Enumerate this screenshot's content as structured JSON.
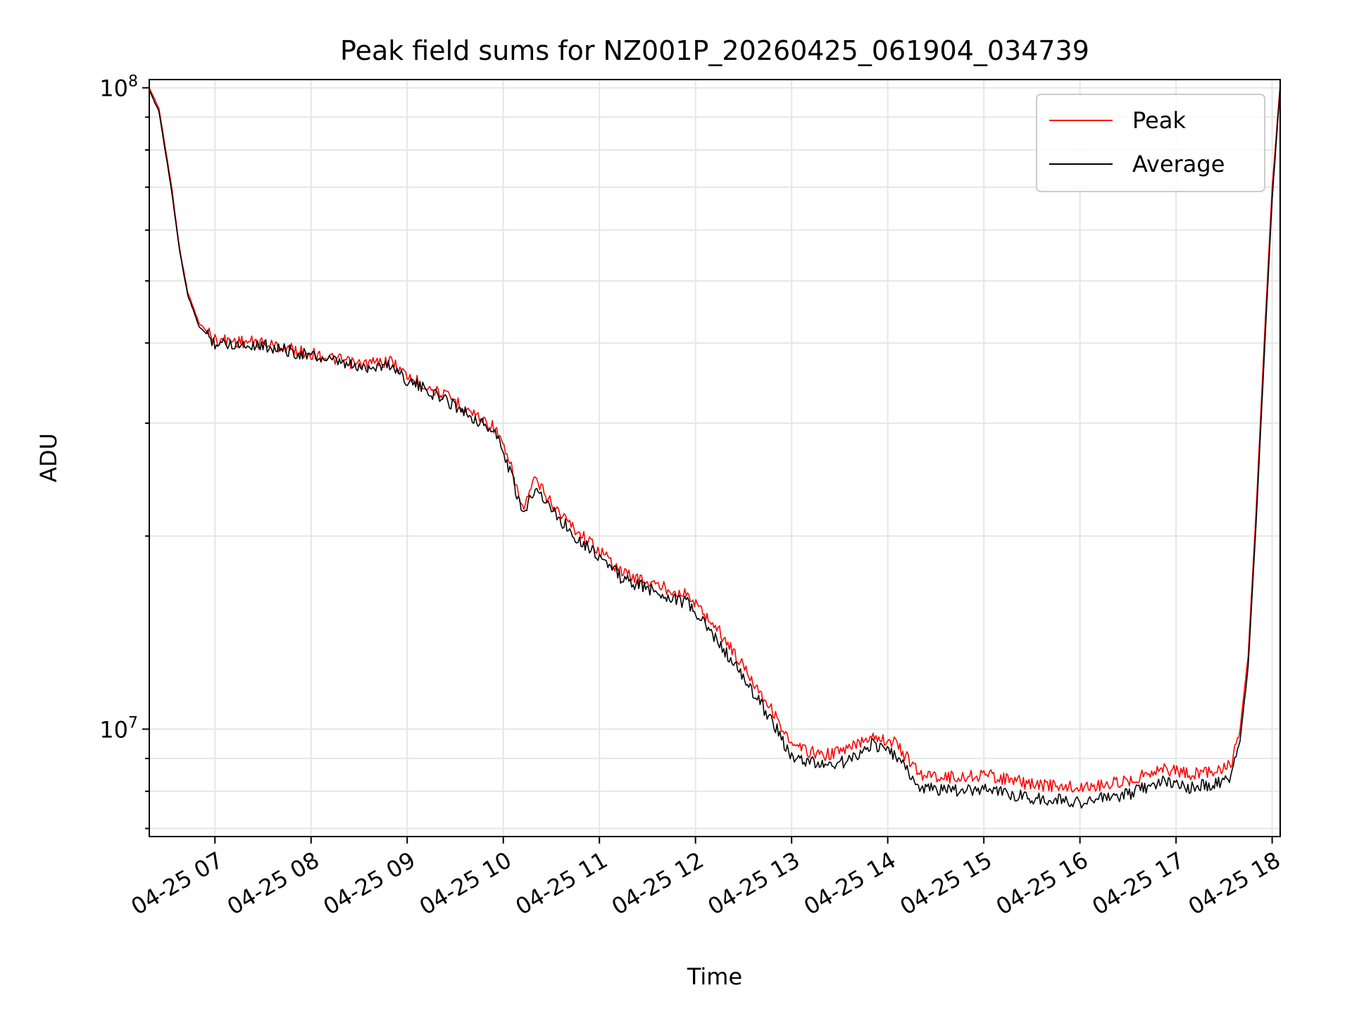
{
  "chart_data": {
    "type": "line",
    "title": "Peak field sums for NZ001P_20260425_061904_034739",
    "xlabel": "Time",
    "ylabel": "ADU",
    "y_scale": "log",
    "ylim": [
      6800000,
      103000000
    ],
    "xlim": [
      "2026-04-25 06:19",
      "2026-04-25 18:05"
    ],
    "x_ticks": [
      "2026-04-25 07:00",
      "2026-04-25 08:00",
      "2026-04-25 09:00",
      "2026-04-25 10:00",
      "2026-04-25 11:00",
      "2026-04-25 12:00",
      "2026-04-25 13:00",
      "2026-04-25 14:00",
      "2026-04-25 15:00",
      "2026-04-25 16:00",
      "2026-04-25 17:00",
      "2026-04-25 18:00"
    ],
    "x_tick_labels": [
      "04-25 07",
      "04-25 08",
      "04-25 09",
      "04-25 10",
      "04-25 11",
      "04-25 12",
      "04-25 13",
      "04-25 14",
      "04-25 15",
      "04-25 16",
      "04-25 17",
      "04-25 18"
    ],
    "y_major_ticks": [
      10000000,
      100000000
    ],
    "y_tick_labels": [
      {
        "base": "10",
        "exp": "7"
      },
      {
        "base": "10",
        "exp": "8"
      }
    ],
    "grid": true,
    "legend_position": "top-right",
    "series": [
      {
        "name": "Peak",
        "color": "#ff0000",
        "x": [
          "2026-04-25 06:19",
          "2026-04-25 06:25",
          "2026-04-25 06:33",
          "2026-04-25 06:38",
          "2026-04-25 06:43",
          "2026-04-25 06:50",
          "2026-04-25 07:00",
          "2026-04-25 07:30",
          "2026-04-25 08:00",
          "2026-04-25 08:30",
          "2026-04-25 08:50",
          "2026-04-25 09:00",
          "2026-04-25 09:30",
          "2026-04-25 09:55",
          "2026-04-25 10:05",
          "2026-04-25 10:12",
          "2026-04-25 10:20",
          "2026-04-25 10:30",
          "2026-04-25 10:45",
          "2026-04-25 11:00",
          "2026-04-25 11:15",
          "2026-04-25 11:35",
          "2026-04-25 11:55",
          "2026-04-25 12:15",
          "2026-04-25 12:35",
          "2026-04-25 12:50",
          "2026-04-25 13:00",
          "2026-04-25 13:20",
          "2026-04-25 13:35",
          "2026-04-25 13:50",
          "2026-04-25 14:05",
          "2026-04-25 14:20",
          "2026-04-25 14:45",
          "2026-04-25 15:00",
          "2026-04-25 15:30",
          "2026-04-25 16:00",
          "2026-04-25 16:30",
          "2026-04-25 16:50",
          "2026-04-25 17:10",
          "2026-04-25 17:30",
          "2026-04-25 17:35",
          "2026-04-25 17:40",
          "2026-04-25 17:45",
          "2026-04-25 17:50",
          "2026-04-25 17:55",
          "2026-04-25 18:00",
          "2026-04-25 18:05"
        ],
        "values": [
          100000000,
          93000000,
          70000000,
          56000000,
          48000000,
          43000000,
          40500000,
          40000000,
          38500000,
          37000000,
          37500000,
          35500000,
          32500000,
          29500000,
          25500000,
          22000000,
          24500000,
          22500000,
          20500000,
          19000000,
          17500000,
          16800000,
          16200000,
          14200000,
          12000000,
          10500000,
          9400000,
          9100000,
          9300000,
          9800000,
          9500000,
          8500000,
          8400000,
          8500000,
          8200000,
          8100000,
          8300000,
          8700000,
          8500000,
          8700000,
          8900000,
          10000000,
          13000000,
          22000000,
          40000000,
          70000000,
          101000000
        ]
      },
      {
        "name": "Average",
        "color": "#000000",
        "x": [
          "2026-04-25 06:19",
          "2026-04-25 06:25",
          "2026-04-25 06:33",
          "2026-04-25 06:38",
          "2026-04-25 06:43",
          "2026-04-25 06:50",
          "2026-04-25 07:00",
          "2026-04-25 07:30",
          "2026-04-25 08:00",
          "2026-04-25 08:30",
          "2026-04-25 08:50",
          "2026-04-25 09:00",
          "2026-04-25 09:30",
          "2026-04-25 09:55",
          "2026-04-25 10:05",
          "2026-04-25 10:12",
          "2026-04-25 10:20",
          "2026-04-25 10:30",
          "2026-04-25 10:45",
          "2026-04-25 11:00",
          "2026-04-25 11:15",
          "2026-04-25 11:35",
          "2026-04-25 11:55",
          "2026-04-25 12:15",
          "2026-04-25 12:35",
          "2026-04-25 12:50",
          "2026-04-25 13:00",
          "2026-04-25 13:20",
          "2026-04-25 13:35",
          "2026-04-25 13:50",
          "2026-04-25 14:05",
          "2026-04-25 14:20",
          "2026-04-25 14:45",
          "2026-04-25 15:00",
          "2026-04-25 15:30",
          "2026-04-25 16:00",
          "2026-04-25 16:30",
          "2026-04-25 16:50",
          "2026-04-25 17:10",
          "2026-04-25 17:30",
          "2026-04-25 17:35",
          "2026-04-25 17:40",
          "2026-04-25 17:45",
          "2026-04-25 17:50",
          "2026-04-25 17:55",
          "2026-04-25 18:00",
          "2026-04-25 18:05"
        ],
        "values": [
          99000000,
          92000000,
          69000000,
          55500000,
          47500000,
          42500000,
          40000000,
          39700000,
          38200000,
          36600000,
          37000000,
          35000000,
          32000000,
          29000000,
          25000000,
          21500000,
          24000000,
          22000000,
          20000000,
          18600000,
          17100000,
          16400000,
          15700000,
          13600000,
          11500000,
          10100000,
          9000000,
          8800000,
          8900000,
          9500000,
          9100000,
          8100000,
          8000000,
          8100000,
          7800000,
          7700000,
          7900000,
          8300000,
          8100000,
          8300000,
          8500000,
          9600000,
          12500000,
          21000000,
          38000000,
          67000000,
          100000000
        ]
      }
    ]
  }
}
